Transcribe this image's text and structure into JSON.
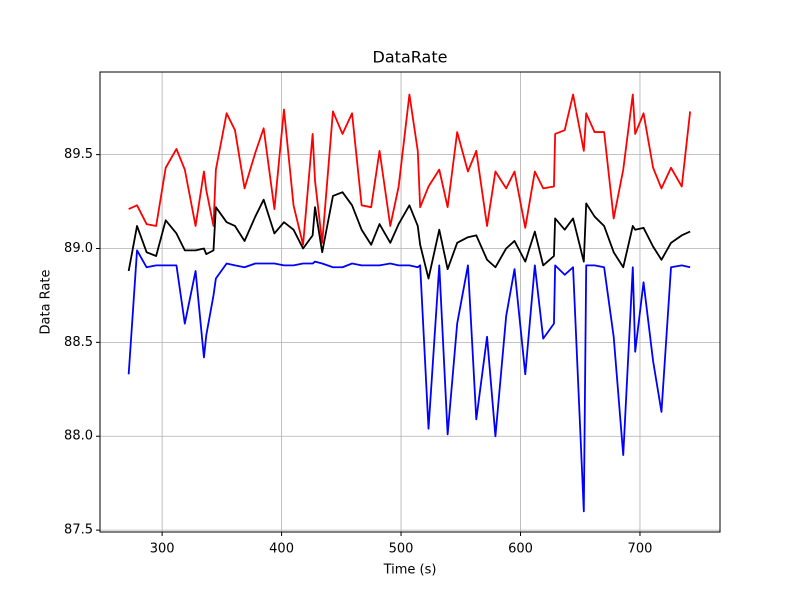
{
  "chart_data": {
    "type": "line",
    "title": "DataRate",
    "x_label": "Time (s)",
    "y_label": "Data Rate",
    "x": [
      272,
      279,
      287,
      295,
      303,
      312,
      319,
      328,
      335,
      337,
      343,
      345,
      354,
      361,
      369,
      378,
      385,
      394,
      402,
      410,
      418,
      426,
      428,
      434,
      443,
      451,
      459,
      467,
      475,
      482,
      491,
      498,
      507,
      514,
      516,
      523,
      532,
      539,
      547,
      556,
      563,
      572,
      579,
      588,
      595,
      604,
      612,
      619,
      628,
      629,
      637,
      644,
      653,
      655,
      662,
      670,
      678,
      686,
      694,
      696,
      703,
      711,
      718,
      726,
      735,
      742
    ],
    "series": [
      {
        "color": "#ff0000",
        "values": [
          89.21,
          89.23,
          89.13,
          89.12,
          89.43,
          89.53,
          89.42,
          89.12,
          89.41,
          89.31,
          89.12,
          89.42,
          89.72,
          89.63,
          89.32,
          89.51,
          89.64,
          89.21,
          89.74,
          89.23,
          89.02,
          89.61,
          89.36,
          89.03,
          89.73,
          89.61,
          89.72,
          89.23,
          89.22,
          89.52,
          89.12,
          89.33,
          89.82,
          89.52,
          89.22,
          89.33,
          89.42,
          89.22,
          89.62,
          89.41,
          89.52,
          89.12,
          89.41,
          89.32,
          89.41,
          89.11,
          89.41,
          89.32,
          89.33,
          89.61,
          89.63,
          89.82,
          89.52,
          89.72,
          89.62,
          89.62,
          89.16,
          89.42,
          89.82,
          89.61,
          89.72,
          89.43,
          89.32,
          89.43,
          89.33,
          89.73
        ]
      },
      {
        "color": "#000000",
        "values": [
          88.88,
          89.12,
          88.98,
          88.96,
          89.15,
          89.08,
          88.99,
          88.99,
          89.0,
          88.97,
          88.99,
          89.22,
          89.14,
          89.12,
          89.04,
          89.17,
          89.26,
          89.08,
          89.14,
          89.1,
          89.0,
          89.07,
          89.22,
          88.98,
          89.28,
          89.3,
          89.23,
          89.1,
          89.02,
          89.13,
          89.03,
          89.13,
          89.23,
          89.12,
          89.02,
          88.84,
          89.1,
          88.89,
          89.03,
          89.06,
          89.07,
          88.94,
          88.9,
          89.0,
          89.04,
          88.93,
          89.09,
          88.91,
          88.96,
          89.16,
          89.1,
          89.16,
          88.93,
          89.24,
          89.17,
          89.12,
          88.98,
          88.9,
          89.12,
          89.1,
          89.11,
          89.01,
          88.94,
          89.03,
          89.07,
          89.09
        ]
      },
      {
        "color": "#0000ff",
        "values": [
          88.33,
          88.99,
          88.9,
          88.91,
          88.91,
          88.91,
          88.6,
          88.88,
          88.42,
          88.54,
          88.75,
          88.84,
          88.92,
          88.91,
          88.9,
          88.92,
          88.92,
          88.92,
          88.91,
          88.91,
          88.92,
          88.92,
          88.93,
          88.92,
          88.9,
          88.9,
          88.92,
          88.91,
          88.91,
          88.91,
          88.92,
          88.91,
          88.91,
          88.9,
          88.91,
          88.04,
          88.91,
          88.01,
          88.6,
          88.91,
          88.09,
          88.53,
          88.0,
          88.64,
          88.89,
          88.33,
          88.91,
          88.52,
          88.6,
          88.91,
          88.86,
          88.9,
          87.6,
          88.91,
          88.91,
          88.9,
          88.53,
          87.9,
          88.9,
          88.45,
          88.82,
          88.4,
          88.13,
          88.9,
          88.91,
          88.9
        ]
      }
    ],
    "xlim": [
      248,
      767
    ],
    "xticks": [
      300,
      400,
      500,
      600,
      700
    ],
    "ylim": [
      87.49,
      89.94
    ],
    "yticks": [
      87.5,
      {
        "value": 88,
        "label": "88.0"
      },
      88.5,
      {
        "value": 89,
        "label": "89.0"
      },
      89.5
    ],
    "grid": true
  }
}
